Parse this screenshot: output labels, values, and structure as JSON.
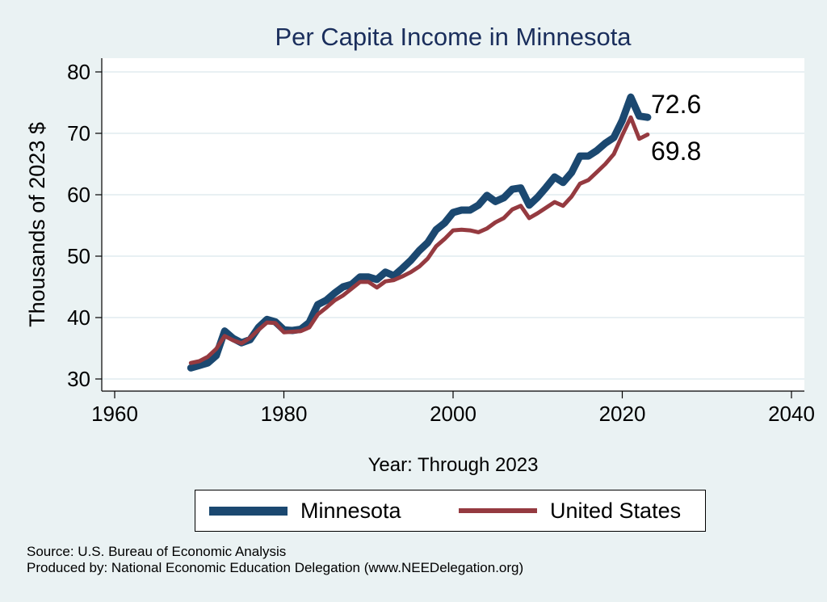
{
  "chart_data": {
    "type": "line",
    "title": "Per Capita Income in Minnesota",
    "xlabel": "Year: Through 2023",
    "ylabel": "Thousands of 2023 $",
    "xlim": [
      1960,
      2040
    ],
    "ylim": [
      28,
      82
    ],
    "xticks": [
      1960,
      1980,
      2000,
      2020,
      2040
    ],
    "yticks": [
      30,
      40,
      50,
      60,
      70,
      80
    ],
    "grid": true,
    "legend_position": "bottom",
    "x": [
      1969,
      1970,
      1971,
      1972,
      1973,
      1974,
      1975,
      1976,
      1977,
      1978,
      1979,
      1980,
      1981,
      1982,
      1983,
      1984,
      1985,
      1986,
      1987,
      1988,
      1989,
      1990,
      1991,
      1992,
      1993,
      1994,
      1995,
      1996,
      1997,
      1998,
      1999,
      2000,
      2001,
      2002,
      2003,
      2004,
      2005,
      2006,
      2007,
      2008,
      2009,
      2010,
      2011,
      2012,
      2013,
      2014,
      2015,
      2016,
      2017,
      2018,
      2019,
      2020,
      2021,
      2022,
      2023
    ],
    "series": [
      {
        "name": "Minnesota",
        "color": "#1b4870",
        "values": [
          31.8,
          32.2,
          32.6,
          33.8,
          37.8,
          36.6,
          35.9,
          36.4,
          38.4,
          39.7,
          39.3,
          38.0,
          37.9,
          38.1,
          39.2,
          42.1,
          42.8,
          44.0,
          45.0,
          45.4,
          46.6,
          46.6,
          46.2,
          47.4,
          46.8,
          48.0,
          49.3,
          50.9,
          52.2,
          54.3,
          55.4,
          57.1,
          57.5,
          57.5,
          58.3,
          59.9,
          58.9,
          59.5,
          60.9,
          61.1,
          58.3,
          59.6,
          61.2,
          62.9,
          62.0,
          63.6,
          66.3,
          66.3,
          67.2,
          68.4,
          69.3,
          72.1,
          75.9,
          72.8,
          72.6
        ],
        "end_label": "72.6"
      },
      {
        "name": "United States",
        "color": "#953a40",
        "values": [
          32.6,
          32.9,
          33.6,
          34.9,
          37.0,
          36.3,
          35.8,
          36.7,
          38.0,
          39.2,
          39.1,
          37.6,
          37.7,
          37.8,
          38.4,
          40.5,
          41.6,
          42.8,
          43.6,
          44.7,
          45.8,
          45.8,
          44.9,
          45.9,
          46.1,
          46.7,
          47.4,
          48.3,
          49.6,
          51.6,
          52.8,
          54.2,
          54.3,
          54.2,
          53.9,
          54.5,
          55.5,
          56.2,
          57.6,
          58.2,
          56.2,
          57.0,
          57.9,
          58.8,
          58.2,
          59.7,
          61.8,
          62.4,
          63.7,
          65.0,
          66.6,
          69.7,
          72.6,
          69.1,
          69.8
        ],
        "end_label": "69.8"
      }
    ]
  },
  "footer": {
    "source": "Source: U.S. Bureau of Economic Analysis",
    "produced_by": "Produced by: National Economic Education Delegation (www.NEEDelegation.org)"
  }
}
